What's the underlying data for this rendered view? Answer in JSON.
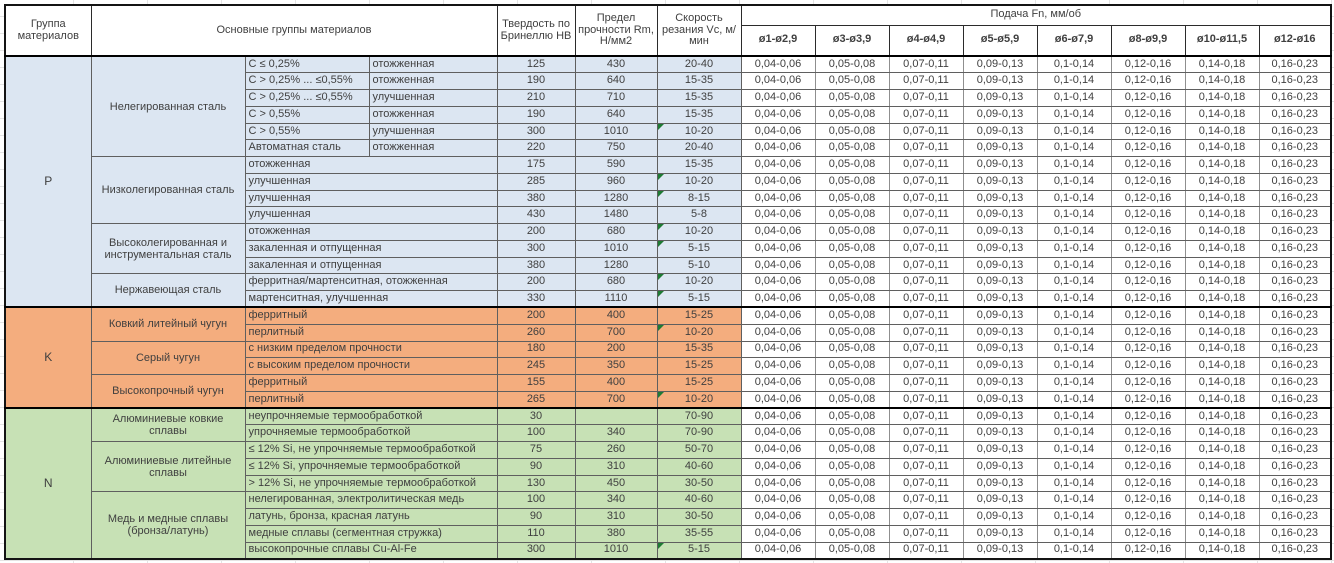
{
  "header": {
    "col_group": "Группа материалов",
    "col_materials": "Основные группы материалов",
    "col_hb": "Твердость по Бринеллю HB",
    "col_rm": "Предел прочности Rm, Н/мм2",
    "col_vc": "Скорость резания Vc, м/мин",
    "col_feed": "Подача Fn, мм/об",
    "diameters": [
      "ø1-ø2,9",
      "ø3-ø3,9",
      "ø4-ø4,9",
      "ø5-ø5,9",
      "ø6-ø7,9",
      "ø8-ø9,9",
      "ø10-ø11,5",
      "ø12-ø16"
    ]
  },
  "feed_values": [
    "0,04-0,06",
    "0,05-0,08",
    "0,07-0,11",
    "0,09-0,13",
    "0,1-0,14",
    "0,12-0,16",
    "0,14-0,18",
    "0,16-0,23"
  ],
  "colors": {
    "group_p": "#DCE6F2",
    "group_k": "#F4AD7E",
    "group_n": "#C7E1B5",
    "comment_indicator": "#1E7B34",
    "text": "#3F3F3F"
  },
  "icons": {
    "comment_indicator": "corner-triangle-top-left"
  },
  "groups": [
    {
      "code": "P",
      "color": "#DCE6F2",
      "subgroups": [
        {
          "name": "Нелегированная сталь",
          "rows": [
            {
              "c1": "C ≤ 0,25%",
              "c2": "отожженная",
              "hb": "125",
              "rm": "430",
              "vc": "20-40",
              "tri": false
            },
            {
              "c1": "C > 0,25% ... ≤0,55%",
              "c2": "отожженная",
              "hb": "190",
              "rm": "640",
              "vc": "15-35",
              "tri": false
            },
            {
              "c1": "C > 0,25% ... ≤0,55%",
              "c2": "улучшенная",
              "hb": "210",
              "rm": "710",
              "vc": "15-35",
              "tri": false
            },
            {
              "c1": "C > 0,55%",
              "c2": "отожженная",
              "hb": "190",
              "rm": "640",
              "vc": "15-35",
              "tri": false
            },
            {
              "c1": "C > 0,55%",
              "c2": "улучшенная",
              "hb": "300",
              "rm": "1010",
              "vc": "10-20",
              "tri": true
            },
            {
              "c1": "Автоматная сталь",
              "c2": "отожженная",
              "hb": "220",
              "rm": "750",
              "vc": "20-40",
              "tri": false
            }
          ]
        },
        {
          "name": "Низколегированная сталь",
          "rows": [
            {
              "c1": "отожженная",
              "c2": null,
              "hb": "175",
              "rm": "590",
              "vc": "15-35",
              "tri": false
            },
            {
              "c1": "улучшенная",
              "c2": null,
              "hb": "285",
              "rm": "960",
              "vc": "10-20",
              "tri": true
            },
            {
              "c1": "улучшенная",
              "c2": null,
              "hb": "380",
              "rm": "1280",
              "vc": "8-15",
              "tri": true
            },
            {
              "c1": "улучшенная",
              "c2": null,
              "hb": "430",
              "rm": "1480",
              "vc": "5-8",
              "tri": false
            }
          ]
        },
        {
          "name": "Высоколегированная и инструментальная сталь",
          "rows": [
            {
              "c1": "отожженная",
              "c2": null,
              "hb": "200",
              "rm": "680",
              "vc": "10-20",
              "tri": true
            },
            {
              "c1": "закаленная и отпущенная",
              "c2": null,
              "hb": "300",
              "rm": "1010",
              "vc": "5-15",
              "tri": true
            },
            {
              "c1": "закаленная и отпущенная",
              "c2": null,
              "hb": "380",
              "rm": "1280",
              "vc": "5-10",
              "tri": false
            }
          ]
        },
        {
          "name": "Нержавеющая сталь",
          "rows": [
            {
              "c1": "ферритная/мартенситная, отожженная",
              "c2": null,
              "hb": "200",
              "rm": "680",
              "vc": "10-20",
              "tri": true
            },
            {
              "c1": "мартенситная, улучшенная",
              "c2": null,
              "hb": "330",
              "rm": "1110",
              "vc": "5-15",
              "tri": true
            }
          ]
        }
      ]
    },
    {
      "code": "K",
      "color": "#F4AD7E",
      "subgroups": [
        {
          "name": "Ковкий литейный чугун",
          "rows": [
            {
              "c1": "ферритный",
              "c2": null,
              "hb": "200",
              "rm": "400",
              "vc": "15-25",
              "tri": false
            },
            {
              "c1": "перлитный",
              "c2": null,
              "hb": "260",
              "rm": "700",
              "vc": "10-20",
              "tri": true
            }
          ]
        },
        {
          "name": "Серый чугун",
          "rows": [
            {
              "c1": "с низким пределом прочности",
              "c2": null,
              "hb": "180",
              "rm": "200",
              "vc": "15-35",
              "tri": false
            },
            {
              "c1": "с высоким пределом прочности",
              "c2": null,
              "hb": "245",
              "rm": "350",
              "vc": "15-25",
              "tri": false
            }
          ]
        },
        {
          "name": "Высокопрочный чугун",
          "rows": [
            {
              "c1": "ферритный",
              "c2": null,
              "hb": "155",
              "rm": "400",
              "vc": "15-25",
              "tri": false
            },
            {
              "c1": "перлитный",
              "c2": null,
              "hb": "265",
              "rm": "700",
              "vc": "10-20",
              "tri": true
            }
          ]
        }
      ]
    },
    {
      "code": "N",
      "color": "#C7E1B5",
      "subgroups": [
        {
          "name": "Алюминиевые ковкие сплавы",
          "rows": [
            {
              "c1": "неупрочняемые термообработкой",
              "c2": null,
              "hb": "30",
              "rm": "",
              "vc": "70-90",
              "tri": false
            },
            {
              "c1": "упрочняемые термообработкой",
              "c2": null,
              "hb": "100",
              "rm": "340",
              "vc": "70-90",
              "tri": false
            }
          ]
        },
        {
          "name": "Алюминиевые литейные сплавы",
          "rows": [
            {
              "c1": "≤ 12% Si, не упрочняемые термообработкой",
              "c2": null,
              "hb": "75",
              "rm": "260",
              "vc": "50-70",
              "tri": false
            },
            {
              "c1": "≤ 12% Si, упрочняемые термообработкой",
              "c2": null,
              "hb": "90",
              "rm": "310",
              "vc": "40-60",
              "tri": false
            },
            {
              "c1": "> 12% Si, не упрочняемые термообработкой",
              "c2": null,
              "hb": "130",
              "rm": "450",
              "vc": "30-50",
              "tri": false
            }
          ]
        },
        {
          "name": "Медь и медные сплавы (бронза/латунь)",
          "rows": [
            {
              "c1": "нелегированная, электролитическая медь",
              "c2": null,
              "hb": "100",
              "rm": "340",
              "vc": "40-60",
              "tri": false
            },
            {
              "c1": "латунь, бронза, красная латунь",
              "c2": null,
              "hb": "90",
              "rm": "310",
              "vc": "30-50",
              "tri": false
            },
            {
              "c1": "медные сплавы (сегментная стружка)",
              "c2": null,
              "hb": "110",
              "rm": "380",
              "vc": "35-55",
              "tri": false
            },
            {
              "c1": "высокопрочные сплавы Cu-Al-Fe",
              "c2": null,
              "hb": "300",
              "rm": "1010",
              "vc": "5-15",
              "tri": true
            }
          ]
        }
      ]
    }
  ]
}
